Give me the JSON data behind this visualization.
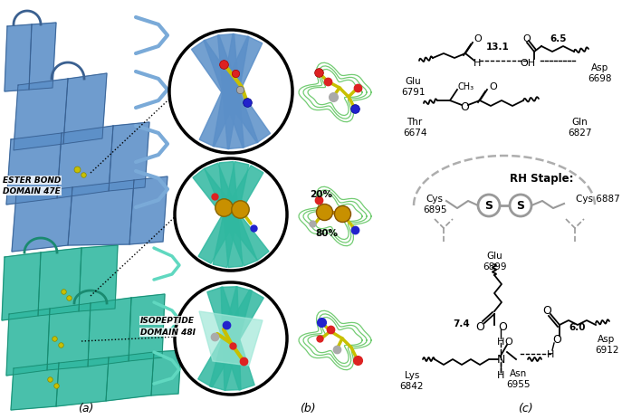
{
  "fig_width": 7.08,
  "fig_height": 4.64,
  "dpi": 100,
  "bg_color": "#ffffff",
  "panel_a_label": "(a)",
  "panel_b_label": "(b)",
  "panel_c_label": "(c)",
  "ester_bond_label1": "ESTER BOND",
  "ester_bond_label2": "DOMAIN 47E",
  "isopeptide_label1": "ISOPEPTIDE",
  "isopeptide_label2": "DOMAIN 48I",
  "rh_staple_label": "RH Staple:",
  "cys_6895": "Cys\n6895",
  "cys_6887": "Cys 6887",
  "s_label": "S",
  "glu_6791_label": "Glu\n6791",
  "asp_6698_label": "Asp\n6698",
  "thr_6674_label": "Thr\n6674",
  "gln_6827_label": "Gln\n6827",
  "glu_6899_label": "Glu\n6899",
  "lys_6842_label": "Lys\n6842",
  "asn_6955_label": "Asn\n6955",
  "asp_6912_label": "Asp\n6912",
  "dist_13_1": "13.1",
  "dist_6_5": "6.5",
  "dist_7_4": "7.4",
  "dist_6_0": "6.0",
  "pct_20": "20%",
  "pct_80": "80%",
  "blue_domain": "#5b8fc8",
  "blue_dark": "#3a6090",
  "blue_light": "#7aaad8",
  "teal_domain": "#30b8a0",
  "teal_dark": "#1a8a70",
  "teal_light": "#60d8c0",
  "teal_pale": "#a0e8d8",
  "yellow_stick": "#c8c000",
  "gold_sphere": "#c89000",
  "gray_chain": "#999999",
  "black": "#000000",
  "green_mesh": "#44bb44",
  "red_atom": "#dd2222",
  "blue_atom": "#2222cc",
  "gray_atom": "#aaaaaa",
  "white": "#ffffff"
}
